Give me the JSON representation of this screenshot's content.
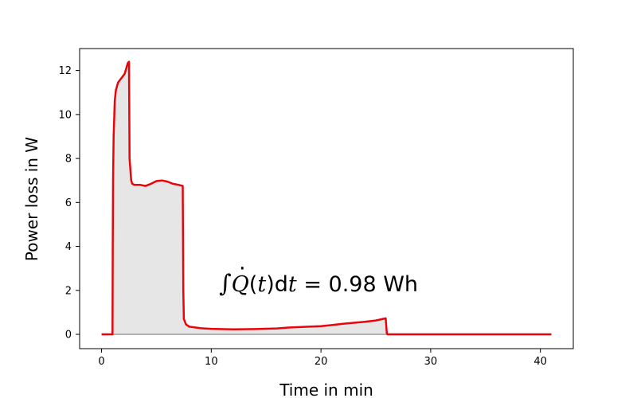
{
  "chart_data": {
    "type": "area",
    "xlabel": "Time in min",
    "ylabel": "Power loss in W",
    "xlim": [
      -2,
      43
    ],
    "ylim": [
      -0.65,
      13
    ],
    "xticks": [
      0,
      10,
      20,
      30,
      40
    ],
    "yticks": [
      0,
      2,
      4,
      6,
      8,
      10,
      12
    ],
    "grid": false,
    "annotation": {
      "integral": "∫",
      "qdot": "Q",
      "dot": "·",
      "open": "(",
      "t1": "t",
      "close": ")",
      "d": "d",
      "t2": "t",
      "rest": " = 0.98 Wh"
    },
    "colors": {
      "line": "#e8040a",
      "fill": "#e6e6e6",
      "baseline": "#808080"
    },
    "series": [
      {
        "x": [
          0,
          1.0,
          1.02,
          1.05,
          1.1,
          1.2,
          1.3,
          1.5,
          1.8,
          2.1,
          2.4,
          2.5,
          2.55,
          2.7,
          2.8,
          3.0,
          3.5,
          4.0,
          4.5,
          5.0,
          5.5,
          6.0,
          6.5,
          7.0,
          7.4,
          7.45,
          7.5,
          7.7,
          8.0,
          9.0,
          10.0,
          12.0,
          14.0,
          16.0,
          17.0,
          18.0,
          20.0,
          21.0,
          22.0,
          24.0,
          25.0,
          25.9,
          26.0,
          26.05,
          30.0,
          35.0,
          41.0
        ],
        "y": [
          0,
          0,
          4,
          7,
          9,
          10.6,
          11.1,
          11.45,
          11.65,
          11.85,
          12.35,
          12.4,
          8.0,
          7.0,
          6.85,
          6.8,
          6.8,
          6.75,
          6.85,
          6.97,
          7.0,
          6.95,
          6.85,
          6.8,
          6.75,
          2.0,
          0.7,
          0.45,
          0.35,
          0.28,
          0.25,
          0.23,
          0.24,
          0.27,
          0.31,
          0.33,
          0.37,
          0.42,
          0.48,
          0.57,
          0.63,
          0.73,
          0.05,
          0,
          0,
          0,
          0
        ]
      }
    ]
  }
}
